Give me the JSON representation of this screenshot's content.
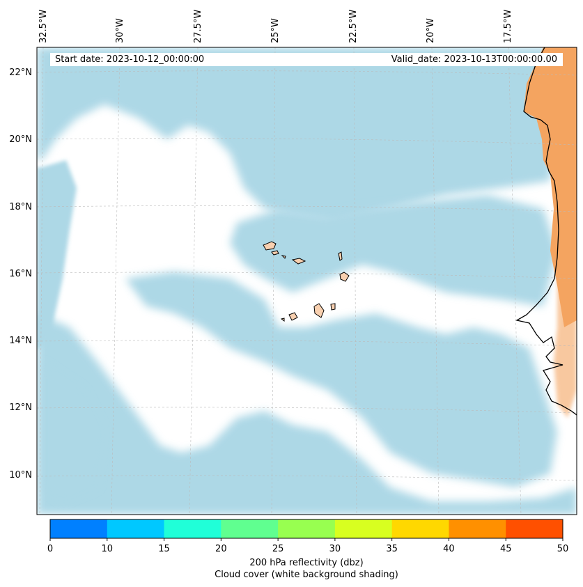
{
  "map": {
    "start_date_label": "Start date: 2023-10-12_00:00:00",
    "valid_date_label": "Valid_date: 2023-10-13T00:00:00.00",
    "lon_labels": [
      "32.5°W",
      "30°W",
      "27.5°W",
      "25°W",
      "22.5°W",
      "20°W",
      "17.5°W"
    ],
    "lat_labels": [
      "22°N",
      "20°N",
      "18°N",
      "16°N",
      "14°N",
      "12°N",
      "10°N"
    ],
    "colors": {
      "cloud": "#a9d6e5",
      "land_high": "#f4a460",
      "land_low": "#f8d0b0",
      "coastline": "#000000",
      "gridline": "#bbbbbb"
    }
  },
  "colorbar": {
    "ticks": [
      "0",
      "10",
      "15",
      "20",
      "25",
      "30",
      "35",
      "40",
      "45",
      "50"
    ],
    "colors": [
      "#0080ff",
      "#00c8ff",
      "#20ffd8",
      "#60ff90",
      "#98ff50",
      "#d8ff20",
      "#ffd800",
      "#ff9000",
      "#ff5000"
    ],
    "title_line1": "200 hPa reflectivity (dbz)",
    "title_line2": "Cloud cover (white background shading)"
  }
}
